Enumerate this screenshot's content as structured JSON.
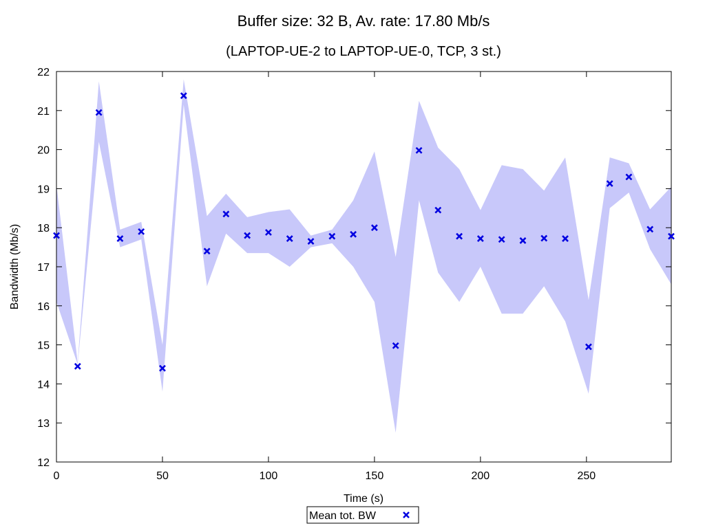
{
  "chart_data": {
    "type": "scatter",
    "title": "Buffer size: 32 B, Av. rate: 17.80 Mb/s",
    "subtitle": "(LAPTOP-UE-2 to LAPTOP-UE-0, TCP, 3 st.)",
    "xlabel": "Time (s)",
    "ylabel": "Bandwidth (Mb/s)",
    "xlim": [
      0,
      290
    ],
    "ylim": [
      12,
      22
    ],
    "x_ticks": [
      0,
      50,
      100,
      150,
      200,
      250
    ],
    "x_tick_labels": [
      "0",
      "50",
      "100",
      "150",
      "200",
      "250"
    ],
    "y_ticks": [
      12,
      13,
      14,
      15,
      16,
      17,
      18,
      19,
      20,
      21,
      22
    ],
    "y_tick_labels": [
      "12",
      "13",
      "14",
      "15",
      "16",
      "17",
      "18",
      "19",
      "20",
      "21",
      "22"
    ],
    "grid": false,
    "legend_position": "bottom-center",
    "series": [
      {
        "name": "Mean tot. BW",
        "marker": "x",
        "color": "#0000e0",
        "band_color": "#c8c8fa",
        "x": [
          0,
          10,
          20,
          30,
          40,
          50,
          60,
          71,
          80,
          90,
          100,
          110,
          120,
          130,
          140,
          150,
          160,
          171,
          180,
          190,
          200,
          210,
          220,
          230,
          240,
          251,
          261,
          270,
          280,
          290
        ],
        "y": [
          17.8,
          14.45,
          20.95,
          17.72,
          17.9,
          14.4,
          21.38,
          17.4,
          18.35,
          17.8,
          17.88,
          17.72,
          17.65,
          17.78,
          17.83,
          18.0,
          14.98,
          19.98,
          18.45,
          17.78,
          17.72,
          17.7,
          17.67,
          17.73,
          17.72,
          14.95,
          19.13,
          19.3,
          17.96,
          17.78
        ],
        "low": [
          16.1,
          14.5,
          20.2,
          17.5,
          17.7,
          13.8,
          21.15,
          16.5,
          17.85,
          17.35,
          17.35,
          17.0,
          17.5,
          17.6,
          17.0,
          16.1,
          12.75,
          18.7,
          16.85,
          16.1,
          17.0,
          15.8,
          15.8,
          16.5,
          15.6,
          13.75,
          18.5,
          18.9,
          17.45,
          16.55
        ],
        "high": [
          19.1,
          14.55,
          21.75,
          17.95,
          18.15,
          15.0,
          21.8,
          18.3,
          18.87,
          18.27,
          18.4,
          18.47,
          17.8,
          17.95,
          18.7,
          19.95,
          17.25,
          21.25,
          20.05,
          19.5,
          18.45,
          19.6,
          19.5,
          18.95,
          19.8,
          16.15,
          19.8,
          19.65,
          18.47,
          19.05
        ]
      }
    ]
  }
}
